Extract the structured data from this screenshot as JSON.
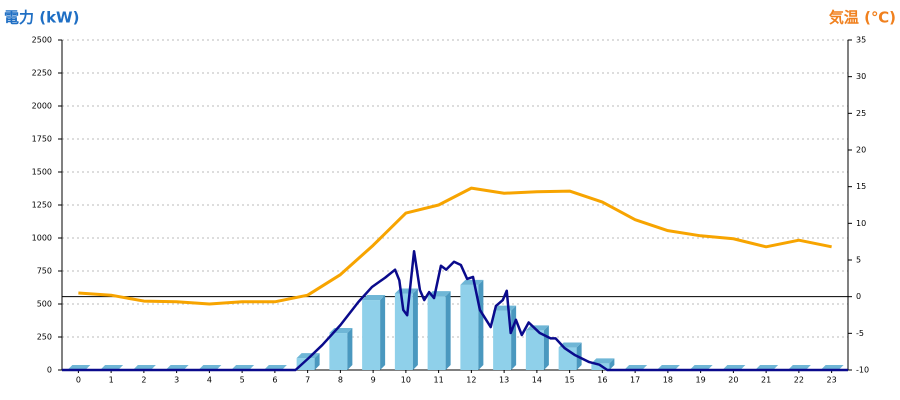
{
  "chart_data": {
    "type": "bar-line",
    "y_label": "電力 (kW)",
    "y2_label": "気温 (℃)",
    "y_label_color": "#1f6fc4",
    "y2_label_color": "#f0801e",
    "categories": [
      "0",
      "1",
      "2",
      "3",
      "4",
      "5",
      "6",
      "7",
      "8",
      "9",
      "10",
      "11",
      "12",
      "13",
      "14",
      "15",
      "16",
      "17",
      "18",
      "19",
      "20",
      "21",
      "22",
      "23"
    ],
    "xlim": [
      -0.5,
      23.5
    ],
    "ylim": [
      0,
      2500
    ],
    "yticks": [
      0,
      250,
      500,
      750,
      1000,
      1250,
      1500,
      1750,
      2000,
      2250,
      2500
    ],
    "y2lim": [
      -10,
      35
    ],
    "y2ticks": [
      -10,
      -5,
      0,
      5,
      10,
      15,
      20,
      25,
      30,
      35
    ],
    "grid": true,
    "series": [
      {
        "type": "bar",
        "color": "#8fd0ea",
        "values": [
          0,
          0,
          0,
          0,
          0,
          0,
          0,
          90,
          280,
          530,
          580,
          560,
          645,
          450,
          300,
          170,
          50,
          0,
          0,
          0,
          0,
          0,
          0,
          0
        ]
      },
      {
        "type": "line",
        "color": "#0a0a8c",
        "x": [
          -0.5,
          6.63,
          7.03,
          7.45,
          8.0,
          8.55,
          8.97,
          9.37,
          9.67,
          9.8,
          9.92,
          10.04,
          10.25,
          10.43,
          10.56,
          10.71,
          10.86,
          11.07,
          11.23,
          11.47,
          11.68,
          11.87,
          12.05,
          12.26,
          12.59,
          12.75,
          12.96,
          13.08,
          13.2,
          13.36,
          13.54,
          13.75,
          14.09,
          14.42,
          14.57,
          14.85,
          15.15,
          15.6,
          15.91,
          16.15,
          23.5
        ],
        "values": [
          0,
          0,
          90,
          190,
          340,
          515,
          630,
          700,
          760,
          680,
          455,
          415,
          900,
          605,
          530,
          590,
          545,
          790,
          760,
          820,
          795,
          690,
          705,
          455,
          325,
          485,
          530,
          600,
          280,
          380,
          265,
          360,
          280,
          240,
          240,
          165,
          115,
          60,
          40,
          0,
          0
        ]
      },
      {
        "type": "line",
        "axis": "y2",
        "color": "#f7a400",
        "values": [
          0.5,
          0.2,
          -0.6,
          -0.7,
          -1.0,
          -0.7,
          -0.7,
          0.2,
          3.0,
          7.0,
          11.4,
          12.5,
          14.8,
          14.1,
          14.3,
          14.4,
          12.9,
          10.5,
          9.0,
          8.3,
          7.9,
          6.8,
          7.7,
          6.8
        ]
      }
    ]
  }
}
